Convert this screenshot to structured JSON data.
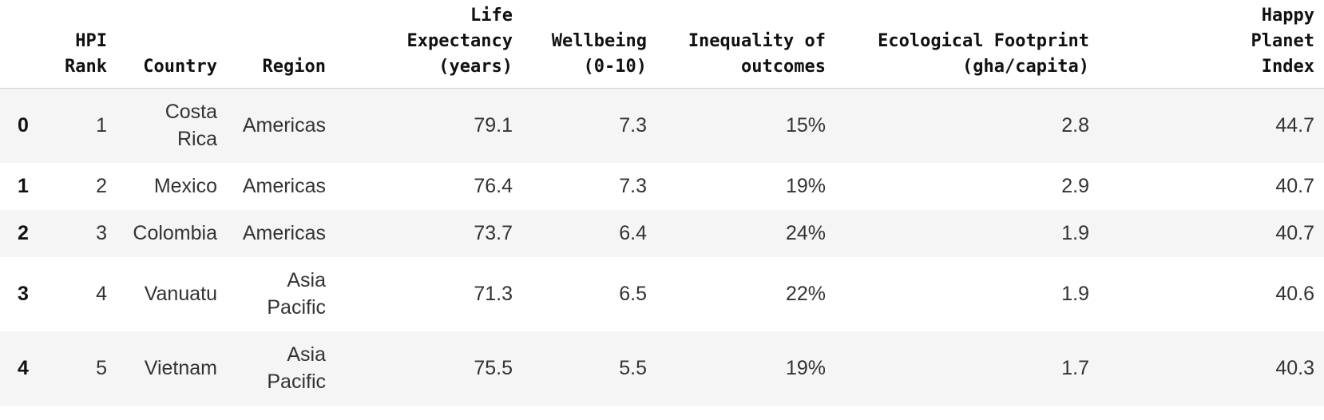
{
  "table": {
    "headers": [
      "",
      "HPI\nRank",
      "Country",
      "Region",
      "Life\nExpectancy\n(years)",
      "Wellbeing\n(0-10)",
      "Inequality of\noutcomes",
      "Ecological Footprint\n(gha/capita)",
      "Happy\nPlanet\nIndex"
    ],
    "rows": [
      {
        "index": "0",
        "rank": "1",
        "country": "Costa\nRica",
        "region": "Americas",
        "life": "79.1",
        "wellbeing": "7.3",
        "inequality": "15%",
        "footprint": "2.8",
        "hpi": "44.7"
      },
      {
        "index": "1",
        "rank": "2",
        "country": "Mexico",
        "region": "Americas",
        "life": "76.4",
        "wellbeing": "7.3",
        "inequality": "19%",
        "footprint": "2.9",
        "hpi": "40.7"
      },
      {
        "index": "2",
        "rank": "3",
        "country": "Colombia",
        "region": "Americas",
        "life": "73.7",
        "wellbeing": "6.4",
        "inequality": "24%",
        "footprint": "1.9",
        "hpi": "40.7"
      },
      {
        "index": "3",
        "rank": "4",
        "country": "Vanuatu",
        "region": "Asia\nPacific",
        "life": "71.3",
        "wellbeing": "6.5",
        "inequality": "22%",
        "footprint": "1.9",
        "hpi": "40.6"
      },
      {
        "index": "4",
        "rank": "5",
        "country": "Vietnam",
        "region": "Asia\nPacific",
        "life": "75.5",
        "wellbeing": "5.5",
        "inequality": "19%",
        "footprint": "1.7",
        "hpi": "40.3"
      }
    ]
  }
}
